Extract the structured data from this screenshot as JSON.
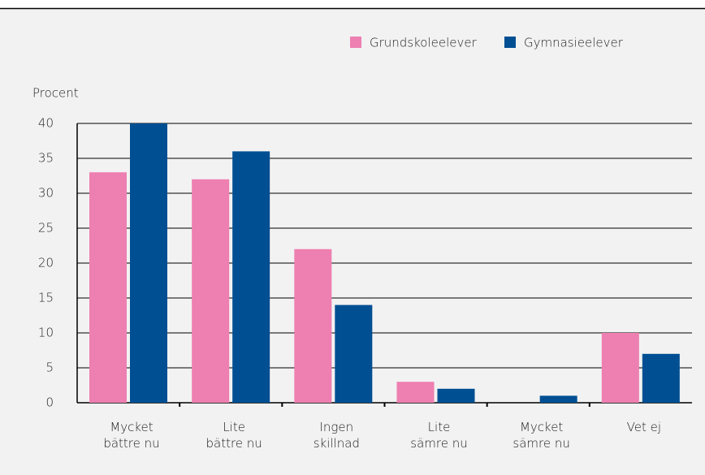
{
  "chart_data": {
    "type": "bar",
    "y_label": "Procent",
    "categories": [
      "Mycket\nbättre nu",
      "Lite\nbättre nu",
      "Ingen\nskillnad",
      "Lite\nsämre nu",
      "Mycket\nsämre nu",
      "Vet ej"
    ],
    "series": [
      {
        "name": "Grundskoleelever",
        "color": "#ee7fb1",
        "values": [
          33,
          32,
          22,
          3,
          0,
          10
        ]
      },
      {
        "name": "Gymnasieelever",
        "color": "#004f93",
        "values": [
          40,
          36,
          14,
          2,
          1,
          7
        ]
      }
    ],
    "ylim": [
      0,
      40
    ],
    "yticks": [
      0,
      5,
      10,
      15,
      20,
      25,
      30,
      35,
      40
    ],
    "grid": true,
    "legend": "top-right"
  }
}
